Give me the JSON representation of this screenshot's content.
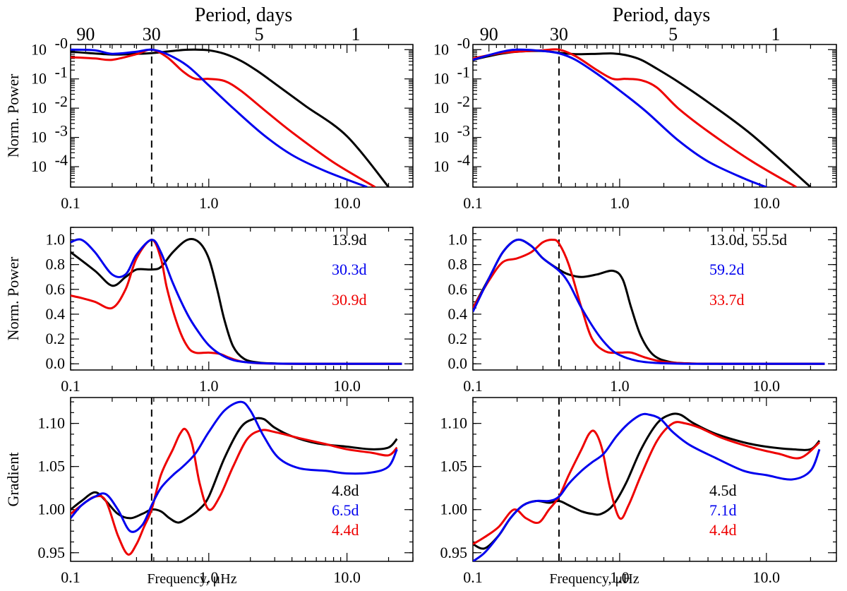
{
  "colors": {
    "black": "#000000",
    "blue": "#0000ee",
    "red": "#ee0000"
  },
  "figure": {
    "top_axis_title": "Period, days",
    "top_axis_ticks": [
      "90",
      "30",
      "5",
      "1"
    ],
    "top_axis_tick_periods_days": [
      90,
      30,
      5,
      1
    ],
    "x_axis_label": "Frequency, μHz",
    "x_ticks": [
      0.1,
      1.0,
      10.0
    ],
    "x_tick_labels": [
      "0.1",
      "1.0",
      "10.0"
    ],
    "xlim": [
      0.1,
      30
    ],
    "vline_freq_uhz": 0.386
  },
  "chart_data": [
    {
      "id": "left-top",
      "type": "line",
      "yscale": "log",
      "ylabel": "Norm. Power",
      "ylim": [
        2e-05,
        1.5
      ],
      "y_ticks": [
        1,
        0.1,
        0.01,
        0.001,
        0.0001
      ],
      "y_tick_labels": [
        "10-0",
        "10-1",
        "10-2",
        "10-3",
        "10-4"
      ],
      "annotations": [],
      "series": [
        {
          "color": "black",
          "x": [
            0.1,
            0.2,
            0.3,
            0.386,
            0.5,
            0.65,
            0.8,
            1.0,
            1.3,
            1.7,
            2.2,
            3,
            5,
            10,
            20
          ],
          "y": [
            0.85,
            0.68,
            0.72,
            0.76,
            0.86,
            0.97,
            1.0,
            0.95,
            0.72,
            0.42,
            0.2,
            0.07,
            0.012,
            0.0011,
            2e-05
          ]
        },
        {
          "color": "blue",
          "x": [
            0.1,
            0.15,
            0.2,
            0.3,
            0.386,
            0.5,
            0.7,
            1.0,
            1.5,
            2.5,
            4,
            7,
            14
          ],
          "y": [
            1.0,
            0.95,
            0.72,
            0.85,
            1.0,
            0.7,
            0.28,
            0.06,
            0.01,
            0.0012,
            0.00025,
            7e-05,
            2e-05
          ]
        },
        {
          "color": "red",
          "x": [
            0.1,
            0.15,
            0.2,
            0.3,
            0.386,
            0.5,
            0.65,
            0.8,
            1.0,
            1.3,
            1.7,
            2.5,
            4,
            8,
            16
          ],
          "y": [
            0.55,
            0.5,
            0.45,
            0.7,
            1.0,
            0.55,
            0.18,
            0.1,
            0.1,
            0.085,
            0.04,
            0.009,
            0.0015,
            0.00014,
            2e-05
          ]
        }
      ]
    },
    {
      "id": "right-top",
      "type": "line",
      "yscale": "log",
      "ylabel": "",
      "ylim": [
        2e-05,
        1.5
      ],
      "y_ticks": [
        1,
        0.1,
        0.01,
        0.001,
        0.0001
      ],
      "y_tick_labels": [
        "10-0",
        "10-1",
        "10-2",
        "10-3",
        "10-4"
      ],
      "annotations": [],
      "series": [
        {
          "color": "black",
          "x": [
            0.1,
            0.15,
            0.2,
            0.3,
            0.386,
            0.5,
            0.7,
            0.9,
            1.1,
            1.4,
            1.8,
            2.5,
            4,
            8,
            20
          ],
          "y": [
            0.45,
            0.7,
            0.85,
            0.9,
            0.78,
            0.7,
            0.72,
            0.74,
            0.65,
            0.45,
            0.22,
            0.08,
            0.016,
            0.0012,
            2e-05
          ]
        },
        {
          "color": "blue",
          "x": [
            0.1,
            0.15,
            0.2,
            0.3,
            0.386,
            0.5,
            0.7,
            1.0,
            1.5,
            2.5,
            4,
            7,
            10
          ],
          "y": [
            0.45,
            0.8,
            1.0,
            0.9,
            0.75,
            0.45,
            0.15,
            0.04,
            0.008,
            0.0008,
            0.00015,
            4e-05,
            2e-05
          ]
        },
        {
          "color": "red",
          "x": [
            0.1,
            0.15,
            0.2,
            0.3,
            0.386,
            0.5,
            0.7,
            0.9,
            1.1,
            1.4,
            1.8,
            2.5,
            4,
            8,
            16
          ],
          "y": [
            0.5,
            0.75,
            0.85,
            0.95,
            1.0,
            0.6,
            0.2,
            0.1,
            0.1,
            0.09,
            0.05,
            0.01,
            0.0016,
            0.00015,
            2e-05
          ]
        }
      ]
    },
    {
      "id": "left-mid",
      "type": "line",
      "yscale": "linear",
      "ylabel": "Norm. Power",
      "ylim": [
        -0.05,
        1.1
      ],
      "y_ticks": [
        0.0,
        0.2,
        0.4,
        0.6,
        0.8,
        1.0
      ],
      "y_tick_labels": [
        "0.0",
        "0.2",
        "0.4",
        "0.6",
        "0.8",
        "1.0"
      ],
      "annotations": [
        {
          "text": "13.9d",
          "color": "black"
        },
        {
          "text": "30.3d",
          "color": "blue"
        },
        {
          "text": "30.9d",
          "color": "red"
        }
      ],
      "series": [
        {
          "color": "black",
          "x": [
            0.1,
            0.15,
            0.2,
            0.25,
            0.3,
            0.386,
            0.45,
            0.55,
            0.7,
            0.85,
            1.0,
            1.15,
            1.3,
            1.5,
            1.8,
            2.3,
            3,
            5,
            10,
            25
          ],
          "y": [
            0.9,
            0.75,
            0.63,
            0.7,
            0.76,
            0.76,
            0.78,
            0.9,
            1.0,
            0.98,
            0.85,
            0.6,
            0.35,
            0.14,
            0.04,
            0.01,
            0.003,
            0.0,
            0.0,
            0.0
          ]
        },
        {
          "color": "blue",
          "x": [
            0.1,
            0.12,
            0.15,
            0.2,
            0.25,
            0.3,
            0.386,
            0.45,
            0.55,
            0.7,
            0.85,
            1.0,
            1.2,
            1.5,
            2,
            3,
            5,
            10,
            25
          ],
          "y": [
            0.98,
            1.0,
            0.9,
            0.72,
            0.72,
            0.88,
            1.0,
            0.9,
            0.65,
            0.4,
            0.25,
            0.15,
            0.08,
            0.03,
            0.01,
            0.002,
            0.0,
            0.0,
            0.0
          ]
        },
        {
          "color": "red",
          "x": [
            0.1,
            0.12,
            0.15,
            0.2,
            0.25,
            0.3,
            0.386,
            0.45,
            0.5,
            0.6,
            0.7,
            0.8,
            1.0,
            1.2,
            1.4,
            1.7,
            2.2,
            3,
            5,
            10,
            25
          ],
          "y": [
            0.55,
            0.53,
            0.5,
            0.45,
            0.6,
            0.85,
            1.0,
            0.85,
            0.6,
            0.3,
            0.14,
            0.09,
            0.09,
            0.08,
            0.05,
            0.02,
            0.005,
            0.001,
            0.0,
            0.0,
            0.0
          ]
        }
      ]
    },
    {
      "id": "right-mid",
      "type": "line",
      "yscale": "linear",
      "ylabel": "",
      "ylim": [
        -0.05,
        1.1
      ],
      "y_ticks": [
        0.0,
        0.2,
        0.4,
        0.6,
        0.8,
        1.0
      ],
      "y_tick_labels": [
        "0.0",
        "0.2",
        "0.4",
        "0.6",
        "0.8",
        "1.0"
      ],
      "annotations": [
        {
          "text": "13.0d, 55.5d",
          "color": "black"
        },
        {
          "text": "59.2d",
          "color": "blue"
        },
        {
          "text": "33.7d",
          "color": "red"
        }
      ],
      "series": [
        {
          "color": "black",
          "x": [
            0.1,
            0.13,
            0.16,
            0.2,
            0.25,
            0.3,
            0.386,
            0.45,
            0.55,
            0.7,
            0.9,
            1.05,
            1.2,
            1.4,
            1.7,
            2.2,
            3,
            5,
            10,
            25
          ],
          "y": [
            0.45,
            0.7,
            0.9,
            1.0,
            0.95,
            0.85,
            0.76,
            0.72,
            0.7,
            0.72,
            0.75,
            0.68,
            0.45,
            0.22,
            0.07,
            0.015,
            0.003,
            0.0,
            0.0,
            0.0
          ]
        },
        {
          "color": "blue",
          "x": [
            0.1,
            0.13,
            0.16,
            0.2,
            0.25,
            0.3,
            0.386,
            0.45,
            0.55,
            0.7,
            0.85,
            1.0,
            1.3,
            1.7,
            2.5,
            4,
            10,
            25
          ],
          "y": [
            0.42,
            0.7,
            0.9,
            1.0,
            0.95,
            0.85,
            0.75,
            0.65,
            0.45,
            0.25,
            0.13,
            0.07,
            0.025,
            0.008,
            0.001,
            0.0,
            0.0,
            0.0
          ]
        },
        {
          "color": "red",
          "x": [
            0.1,
            0.13,
            0.16,
            0.2,
            0.25,
            0.3,
            0.35,
            0.386,
            0.45,
            0.55,
            0.65,
            0.8,
            1.0,
            1.2,
            1.5,
            2,
            3,
            5,
            10,
            25
          ],
          "y": [
            0.45,
            0.68,
            0.82,
            0.85,
            0.9,
            0.98,
            1.0,
            0.97,
            0.8,
            0.45,
            0.2,
            0.1,
            0.09,
            0.09,
            0.05,
            0.015,
            0.003,
            0.0,
            0.0,
            0.0
          ]
        }
      ]
    },
    {
      "id": "left-bot",
      "type": "line",
      "yscale": "linear",
      "ylabel": "Gradient",
      "ylim": [
        0.94,
        1.13
      ],
      "y_ticks": [
        0.95,
        1.0,
        1.05,
        1.1
      ],
      "y_tick_labels": [
        "0.95",
        "1.00",
        "1.05",
        "1.10"
      ],
      "annotations": [
        {
          "text": "4.8d",
          "color": "black"
        },
        {
          "text": "6.5d",
          "color": "blue"
        },
        {
          "text": "4.4d",
          "color": "red"
        }
      ],
      "series": [
        {
          "color": "black",
          "x": [
            0.1,
            0.12,
            0.15,
            0.18,
            0.22,
            0.27,
            0.33,
            0.386,
            0.45,
            0.52,
            0.6,
            0.7,
            0.85,
            1.0,
            1.3,
            1.7,
            2.1,
            2.5,
            3,
            4,
            6,
            10,
            15,
            20,
            23
          ],
          "y": [
            1.0,
            1.01,
            1.02,
            1.01,
            0.995,
            0.99,
            0.995,
            1.0,
            0.998,
            0.99,
            0.985,
            0.99,
            1.0,
            1.015,
            1.06,
            1.095,
            1.105,
            1.105,
            1.095,
            1.085,
            1.077,
            1.073,
            1.07,
            1.072,
            1.082
          ]
        },
        {
          "color": "blue",
          "x": [
            0.1,
            0.12,
            0.15,
            0.18,
            0.22,
            0.27,
            0.33,
            0.386,
            0.45,
            0.55,
            0.65,
            0.8,
            1.0,
            1.3,
            1.7,
            2.0,
            2.5,
            3.2,
            4.5,
            7,
            10,
            15,
            20,
            23
          ],
          "y": [
            0.99,
            1.005,
            1.015,
            1.018,
            1.0,
            0.975,
            0.982,
            1.005,
            1.025,
            1.04,
            1.05,
            1.065,
            1.09,
            1.115,
            1.125,
            1.115,
            1.085,
            1.06,
            1.048,
            1.045,
            1.042,
            1.043,
            1.05,
            1.07
          ]
        },
        {
          "color": "red",
          "x": [
            0.1,
            0.12,
            0.15,
            0.18,
            0.22,
            0.26,
            0.3,
            0.34,
            0.386,
            0.45,
            0.55,
            0.62,
            0.68,
            0.76,
            0.86,
            1.0,
            1.2,
            1.5,
            1.9,
            2.4,
            3,
            4.5,
            7,
            10,
            15,
            20,
            23
          ],
          "y": [
            0.995,
            1.005,
            1.015,
            1.01,
            0.97,
            0.948,
            0.96,
            0.98,
            1.0,
            1.04,
            1.07,
            1.088,
            1.093,
            1.075,
            1.03,
            1.0,
            1.015,
            1.05,
            1.082,
            1.092,
            1.09,
            1.083,
            1.076,
            1.07,
            1.066,
            1.063,
            1.072
          ]
        }
      ]
    },
    {
      "id": "right-bot",
      "type": "line",
      "yscale": "linear",
      "ylabel": "",
      "ylim": [
        0.94,
        1.13
      ],
      "y_ticks": [
        0.95,
        1.0,
        1.05,
        1.1
      ],
      "y_tick_labels": [
        "0.95",
        "1.00",
        "1.05",
        "1.10"
      ],
      "annotations": [
        {
          "text": "4.5d",
          "color": "black"
        },
        {
          "text": "7.1d",
          "color": "blue"
        },
        {
          "text": "4.4d",
          "color": "red"
        }
      ],
      "series": [
        {
          "color": "black",
          "x": [
            0.1,
            0.12,
            0.15,
            0.18,
            0.22,
            0.27,
            0.33,
            0.386,
            0.45,
            0.55,
            0.65,
            0.75,
            0.9,
            1.1,
            1.4,
            1.8,
            2.2,
            2.6,
            3.2,
            4.5,
            7,
            10,
            15,
            20,
            23
          ],
          "y": [
            0.96,
            0.955,
            0.97,
            0.99,
            1.005,
            1.01,
            1.008,
            1.01,
            1.005,
            0.998,
            0.995,
            0.995,
            1.005,
            1.03,
            1.07,
            1.1,
            1.11,
            1.11,
            1.1,
            1.088,
            1.078,
            1.073,
            1.07,
            1.07,
            1.08
          ]
        },
        {
          "color": "blue",
          "x": [
            0.1,
            0.12,
            0.15,
            0.18,
            0.22,
            0.27,
            0.33,
            0.386,
            0.45,
            0.55,
            0.65,
            0.78,
            0.95,
            1.15,
            1.4,
            1.6,
            1.9,
            2.3,
            3,
            4.5,
            7,
            10,
            15,
            20,
            23
          ],
          "y": [
            0.94,
            0.95,
            0.97,
            0.99,
            1.005,
            1.01,
            1.01,
            1.015,
            1.03,
            1.045,
            1.055,
            1.065,
            1.085,
            1.1,
            1.11,
            1.11,
            1.105,
            1.09,
            1.075,
            1.06,
            1.045,
            1.04,
            1.035,
            1.045,
            1.07
          ]
        },
        {
          "color": "red",
          "x": [
            0.1,
            0.12,
            0.15,
            0.19,
            0.23,
            0.28,
            0.33,
            0.386,
            0.45,
            0.55,
            0.62,
            0.68,
            0.76,
            0.86,
            1.0,
            1.15,
            1.4,
            1.8,
            2.3,
            2.8,
            3.5,
            5,
            8,
            12,
            17,
            23
          ],
          "y": [
            0.96,
            0.968,
            0.98,
            1.0,
            0.99,
            0.985,
            1.0,
            1.015,
            1.04,
            1.07,
            1.088,
            1.09,
            1.07,
            1.025,
            0.99,
            1.005,
            1.04,
            1.08,
            1.1,
            1.1,
            1.095,
            1.083,
            1.072,
            1.065,
            1.06,
            1.078
          ]
        }
      ]
    }
  ]
}
